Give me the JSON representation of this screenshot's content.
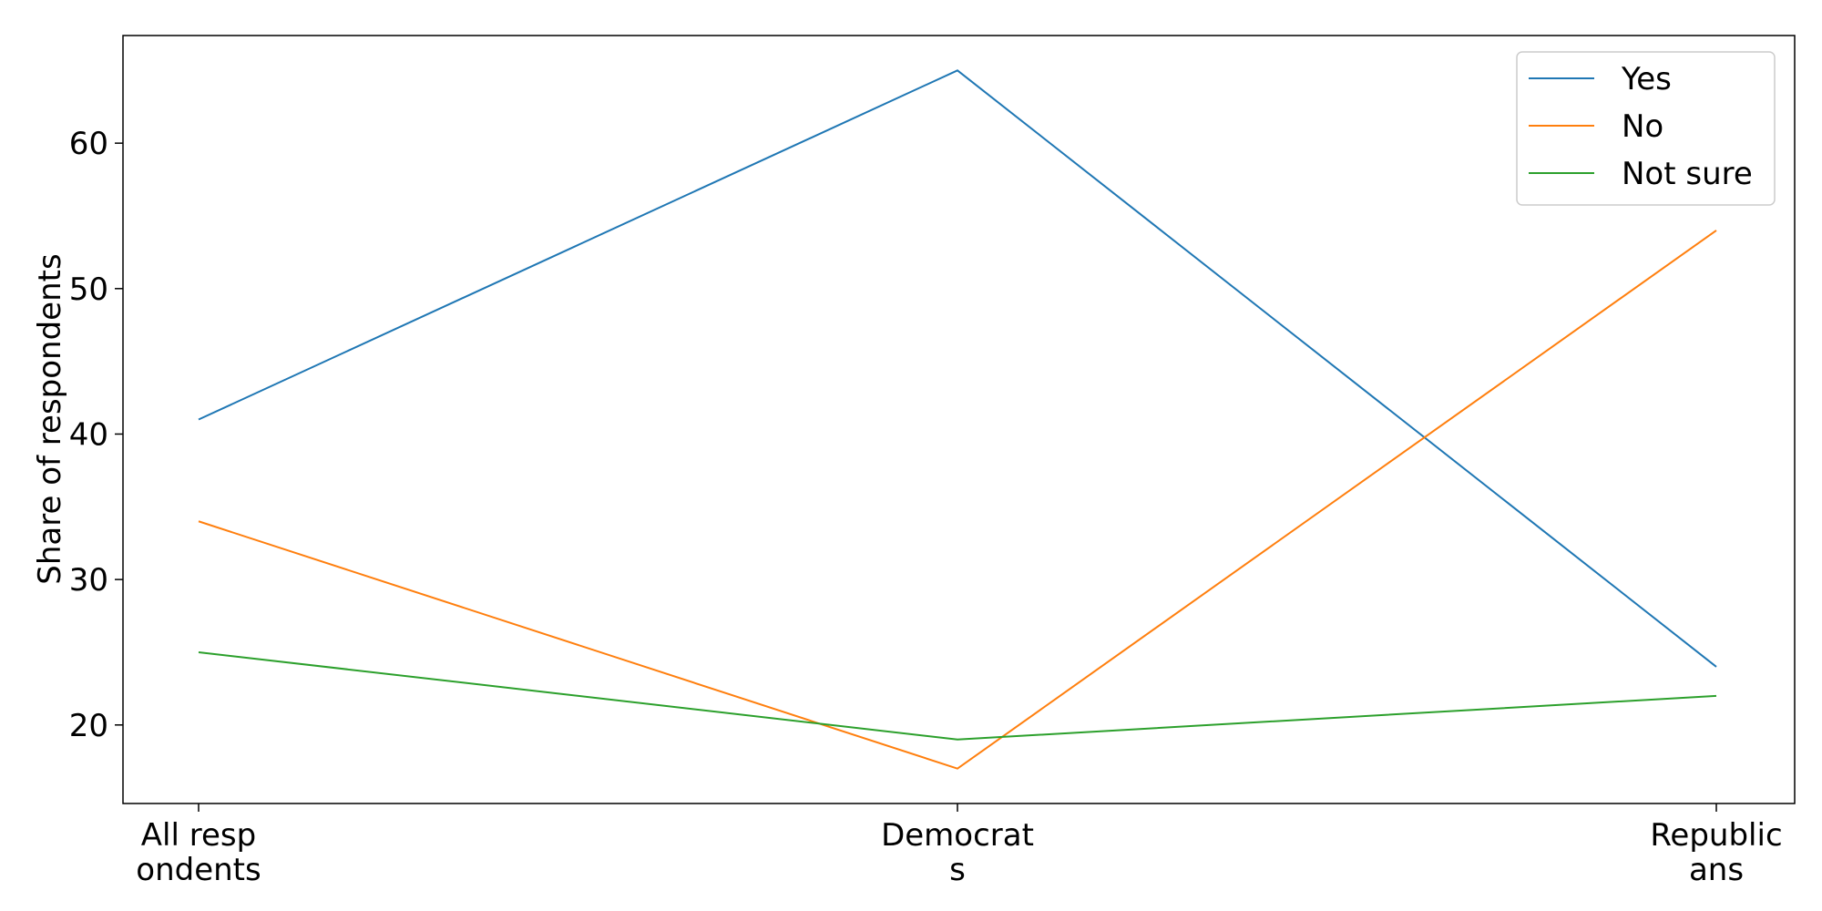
{
  "chart_data": {
    "type": "line",
    "title": "",
    "xlabel": "",
    "ylabel": "Share of respondents",
    "categories": [
      "All resp\nondents",
      "Democrat\ns",
      "Republic\nans"
    ],
    "series": [
      {
        "name": "Yes",
        "color": "#1f77b4",
        "values": [
          41,
          65,
          24
        ]
      },
      {
        "name": "No",
        "color": "#ff7f0e",
        "values": [
          34,
          17,
          54
        ]
      },
      {
        "name": "Not sure",
        "color": "#2ca02c",
        "values": [
          25,
          19,
          22
        ]
      }
    ],
    "ylim": [
      14.6,
      67.4
    ],
    "yticks": [
      20,
      30,
      40,
      50,
      60
    ],
    "grid": false,
    "legend_position": "top-right"
  }
}
